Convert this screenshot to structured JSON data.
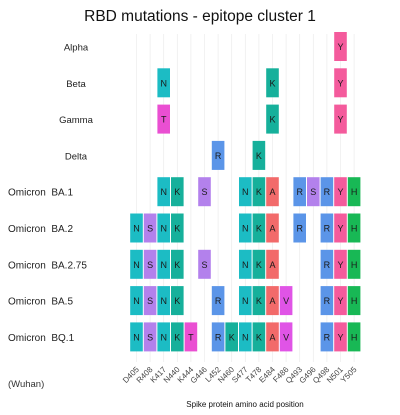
{
  "chart_data": {
    "type": "heatmap",
    "title": "RBD mutations - epitope cluster 1",
    "xlabel": "Spike protein amino acid position",
    "ylabel": "",
    "wuhan_label": "(Wuhan)",
    "positions": [
      "D405",
      "R408",
      "K417",
      "N440",
      "K444",
      "G446",
      "L452",
      "N460",
      "S477",
      "T478",
      "E484",
      "F486",
      "Q493",
      "G496",
      "Q498",
      "N501",
      "Y505"
    ],
    "variants": [
      {
        "name": "Alpha",
        "mutations": {
          "N501": "Y"
        }
      },
      {
        "name": "Beta",
        "mutations": {
          "K417": "N",
          "E484": "K",
          "N501": "Y"
        }
      },
      {
        "name": "Gamma",
        "mutations": {
          "K417": "T",
          "E484": "K",
          "N501": "Y"
        }
      },
      {
        "name": "Delta",
        "mutations": {
          "L452": "R",
          "T478": "K"
        }
      },
      {
        "name": "Omicron  BA.1",
        "mutations": {
          "K417": "N",
          "N440": "K",
          "G446": "S",
          "S477": "N",
          "T478": "K",
          "E484": "A",
          "Q493": "R",
          "G496": "S",
          "Q498": "R",
          "N501": "Y",
          "Y505": "H"
        }
      },
      {
        "name": "Omicron  BA.2",
        "mutations": {
          "D405": "N",
          "R408": "S",
          "K417": "N",
          "N440": "K",
          "S477": "N",
          "T478": "K",
          "E484": "A",
          "Q493": "R",
          "Q498": "R",
          "N501": "Y",
          "Y505": "H"
        }
      },
      {
        "name": "Omicron  BA.2.75",
        "mutations": {
          "D405": "N",
          "R408": "S",
          "K417": "N",
          "N440": "K",
          "G446": "S",
          "S477": "N",
          "T478": "K",
          "E484": "A",
          "Q498": "R",
          "N501": "Y",
          "Y505": "H"
        }
      },
      {
        "name": "Omicron  BA.5",
        "mutations": {
          "D405": "N",
          "R408": "S",
          "K417": "N",
          "N440": "K",
          "L452": "R",
          "S477": "N",
          "T478": "K",
          "E484": "A",
          "F486": "V",
          "Q498": "R",
          "N501": "Y",
          "Y505": "H"
        }
      },
      {
        "name": "Omicron  BQ.1",
        "mutations": {
          "D405": "N",
          "R408": "S",
          "K417": "N",
          "N440": "K",
          "K444": "T",
          "L452": "R",
          "N460": "K",
          "S477": "N",
          "T478": "K",
          "E484": "A",
          "F486": "V",
          "Q498": "R",
          "N501": "Y",
          "Y505": "H"
        }
      }
    ],
    "residue_colors": {
      "N": "#1cbcc4",
      "K": "#16b09b",
      "T": "#ea4fd2",
      "S": "#b381ec",
      "R": "#5b95e8",
      "A": "#f26a6a",
      "V": "#e054e6",
      "Y": "#f45b9c",
      "H": "#18b855"
    },
    "grid": true,
    "legend": "none"
  }
}
